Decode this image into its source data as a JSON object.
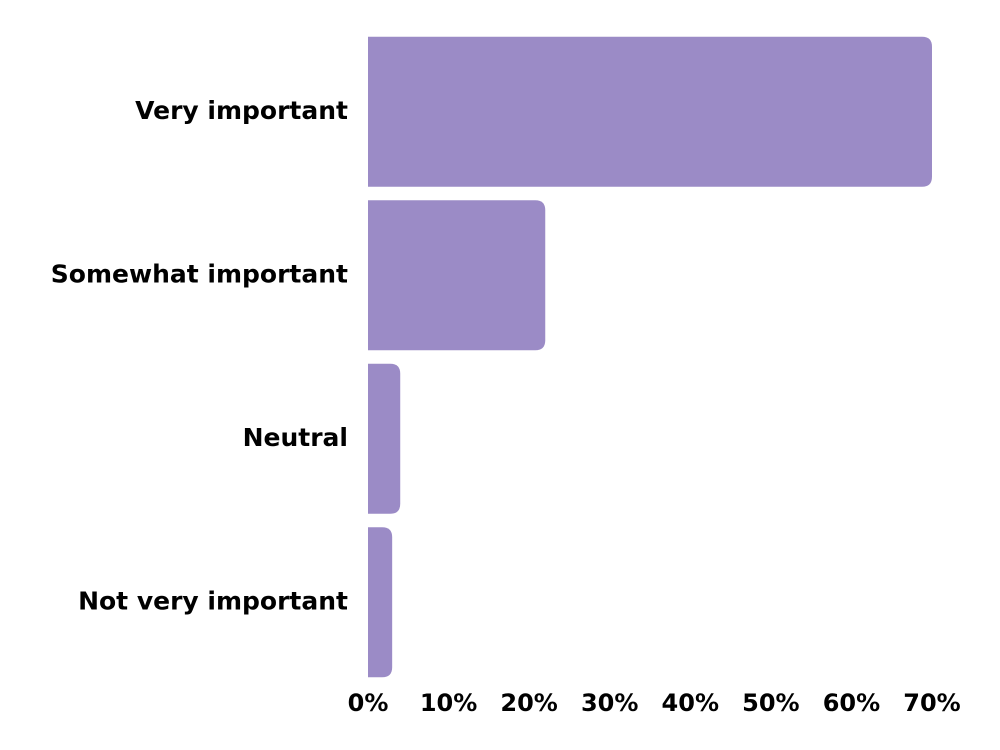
{
  "chart_data": {
    "type": "bar",
    "orientation": "horizontal",
    "categories": [
      "Very important",
      "Somewhat important",
      "Neutral",
      "Not very important"
    ],
    "values": [
      70,
      22,
      4,
      3
    ],
    "color": "#9b8bc6",
    "xlim": [
      0,
      70
    ],
    "xticks": [
      {
        "value": 0,
        "label": "0%"
      },
      {
        "value": 10,
        "label": "10%"
      },
      {
        "value": 20,
        "label": "20%"
      },
      {
        "value": 30,
        "label": "30%"
      },
      {
        "value": 40,
        "label": "40%"
      },
      {
        "value": 50,
        "label": "50%"
      },
      {
        "value": 60,
        "label": "60%"
      },
      {
        "value": 70,
        "label": "70%"
      }
    ],
    "grid": false
  }
}
